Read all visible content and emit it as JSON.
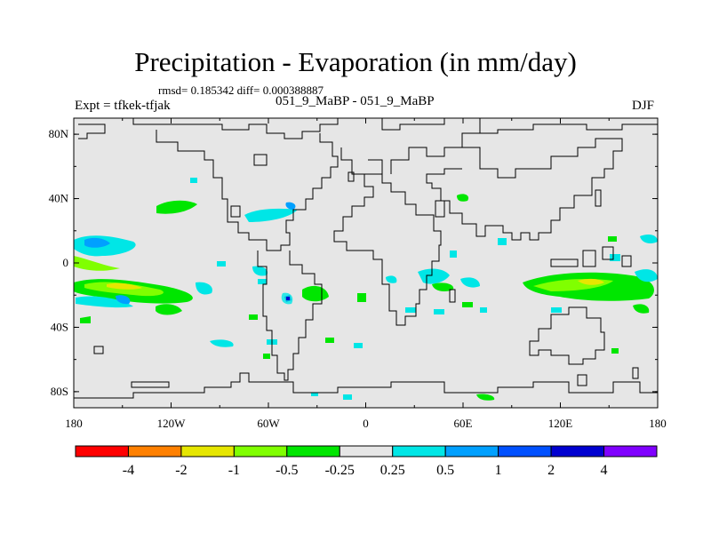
{
  "title": "Precipitation - Evaporation (in mm/day)",
  "stats": "rmsd= 0.185342  diff= 0.000388887",
  "left_label": "Expt = tfkek-tfjak",
  "center_label": "051_9_MaBP - 051_9_MaBP",
  "right_label": "DJF",
  "map": {
    "background_color": "#e6e6e6",
    "lon_range": [
      -180,
      180
    ],
    "lat_range": [
      -90,
      90
    ],
    "lat_ticks": [
      {
        "value": 80,
        "label": "80N"
      },
      {
        "value": 40,
        "label": "40N"
      },
      {
        "value": 0,
        "label": "0"
      },
      {
        "value": -40,
        "label": "40S"
      },
      {
        "value": -80,
        "label": "80S"
      }
    ],
    "lon_ticks": [
      {
        "value": -180,
        "label": "180"
      },
      {
        "value": -120,
        "label": "120W"
      },
      {
        "value": -60,
        "label": "60W"
      },
      {
        "value": 0,
        "label": "0"
      },
      {
        "value": 60,
        "label": "60E"
      },
      {
        "value": 120,
        "label": "120E"
      },
      {
        "value": 180,
        "label": "180"
      }
    ]
  },
  "colorbar": {
    "colors": [
      "#ff0000",
      "#ff8000",
      "#e6e600",
      "#80ff00",
      "#00e600",
      "#e6e6e6",
      "#00e6e6",
      "#00a0ff",
      "#0050ff",
      "#0000d0",
      "#8000ff"
    ],
    "labels": [
      "-4",
      "-2",
      "-1",
      "-0.5",
      "-0.25",
      "0.25",
      "0.5",
      "1",
      "2",
      "4"
    ]
  }
}
